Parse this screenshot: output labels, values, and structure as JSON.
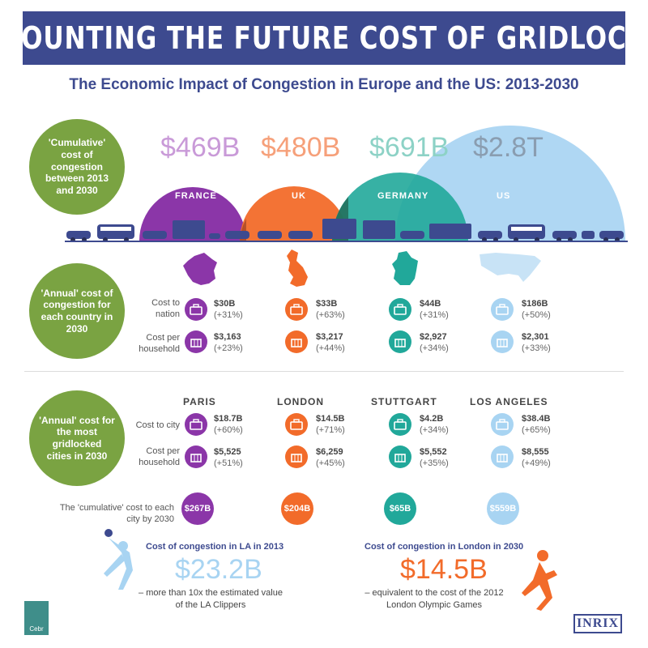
{
  "title": "COUNTING THE FUTURE COST OF GRIDLOCK",
  "subtitle": "The Economic Impact of Congestion in Europe and the US: 2013-2030",
  "colors": {
    "banner": "#3d4a8f",
    "green": "#7aa342",
    "france": "#8b36a8",
    "uk": "#f26b2a",
    "germany": "#21a89a",
    "us": "#a8d4f2"
  },
  "cumulative": {
    "label": "'Cumulative' cost of congestion between 2013 and 2030",
    "countries": [
      {
        "name": "FRANCE",
        "amount": "$469B"
      },
      {
        "name": "UK",
        "amount": "$480B"
      },
      {
        "name": "GERMANY",
        "amount": "$691B"
      },
      {
        "name": "US",
        "amount": "$2.8T"
      }
    ]
  },
  "annual_country": {
    "label": "'Annual' cost of congestion for each country in 2030",
    "row1_label": "Cost to nation",
    "row2_label": "Cost per household",
    "items": [
      {
        "nation": "$30B",
        "nation_pct": "(+31%)",
        "household": "$3,163",
        "household_pct": "(+23%)"
      },
      {
        "nation": "$33B",
        "nation_pct": "(+63%)",
        "household": "$3,217",
        "household_pct": "(+44%)"
      },
      {
        "nation": "$44B",
        "nation_pct": "(+31%)",
        "household": "$2,927",
        "household_pct": "(+34%)"
      },
      {
        "nation": "$186B",
        "nation_pct": "(+50%)",
        "household": "$2,301",
        "household_pct": "(+33%)"
      }
    ]
  },
  "annual_city": {
    "label": "'Annual' cost for the most gridlocked cities in 2030",
    "row1_label": "Cost to city",
    "row2_label": "Cost per household",
    "cumulative_label": "The 'cumulative' cost to each city by 2030",
    "items": [
      {
        "name": "PARIS",
        "city": "$18.7B",
        "city_pct": "(+60%)",
        "household": "$5,525",
        "household_pct": "(+51%)",
        "cumulative": "$267B"
      },
      {
        "name": "LONDON",
        "city": "$14.5B",
        "city_pct": "(+71%)",
        "household": "$6,259",
        "household_pct": "(+45%)",
        "cumulative": "$204B"
      },
      {
        "name": "STUTTGART",
        "city": "$4.2B",
        "city_pct": "(+34%)",
        "household": "$5,552",
        "household_pct": "(+35%)",
        "cumulative": "$65B"
      },
      {
        "name": "LOS ANGELES",
        "city": "$38.4B",
        "city_pct": "(+65%)",
        "household": "$8,555",
        "household_pct": "(+49%)",
        "cumulative": "$559B"
      }
    ]
  },
  "facts": [
    {
      "heading": "Cost of congestion in LA in 2013",
      "amount": "$23.2B",
      "desc1": "– more than 10x the estimated value",
      "desc2": "of the LA Clippers"
    },
    {
      "heading": "Cost of congestion in London in 2030",
      "amount": "$14.5B",
      "desc1": "– equivalent to the cost of the 2012",
      "desc2": "London Olympic Games"
    }
  ],
  "logos": {
    "left": "Cebr",
    "right": "INRIX"
  }
}
